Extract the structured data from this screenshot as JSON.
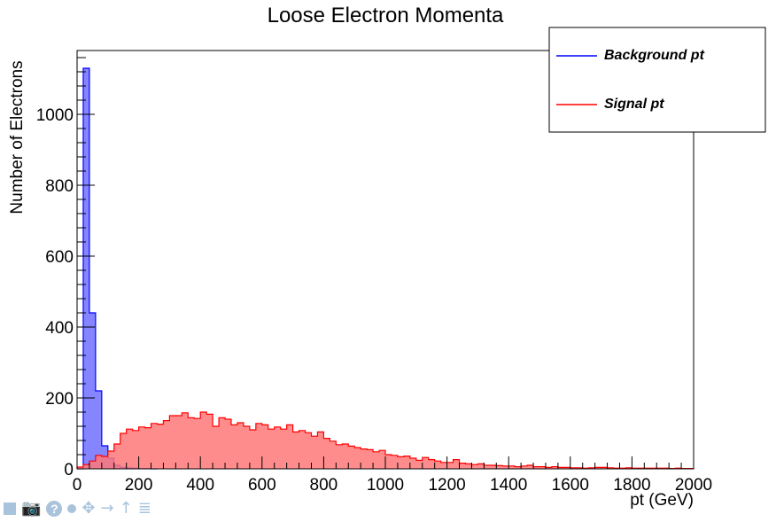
{
  "chart_data": {
    "type": "histogram",
    "title": "Loose Electron Momenta",
    "xlabel": "pt (GeV)",
    "ylabel": "Number of Electrons",
    "xlim": [
      0,
      2000
    ],
    "ylim": [
      0,
      1180
    ],
    "bin_width": 20,
    "x_ticks": [
      "0",
      "200",
      "400",
      "600",
      "800",
      "1000",
      "1200",
      "1400",
      "1600",
      "1800",
      "2000"
    ],
    "y_ticks": [
      "0",
      "200",
      "400",
      "600",
      "800",
      "1000"
    ],
    "legend_position": "top-right",
    "series": [
      {
        "name": "Background pt",
        "color": "#0000ff",
        "fill": "#7878ff",
        "values": [
          0,
          1130,
          440,
          220,
          65,
          30,
          10,
          4,
          3,
          2,
          1,
          1,
          0
        ]
      },
      {
        "name": "Signal pt",
        "color": "#ff0000",
        "fill": "#ff7878",
        "values": [
          5,
          12,
          22,
          38,
          35,
          50,
          70,
          100,
          112,
          108,
          118,
          116,
          128,
          126,
          136,
          150,
          150,
          158,
          144,
          142,
          160,
          154,
          120,
          144,
          140,
          124,
          130,
          120,
          110,
          128,
          124,
          112,
          118,
          112,
          124,
          104,
          108,
          102,
          92,
          104,
          86,
          78,
          68,
          70,
          64,
          60,
          56,
          54,
          48,
          52,
          40,
          38,
          34,
          36,
          30,
          24,
          32,
          26,
          22,
          18,
          18,
          26,
          16,
          14,
          12,
          14,
          10,
          10,
          9,
          8,
          8,
          6,
          8,
          10,
          6,
          6,
          4,
          6,
          4,
          4,
          3,
          3,
          2,
          3,
          4,
          4,
          3,
          2,
          2,
          3,
          2,
          2,
          2,
          2,
          2,
          2,
          1,
          2,
          1,
          1
        ]
      }
    ]
  }
}
